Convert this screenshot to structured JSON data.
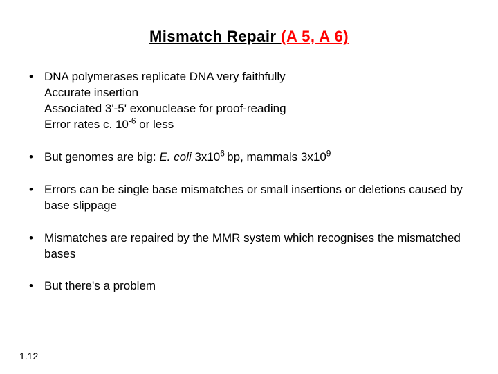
{
  "title_main": "Mismatch Repair ",
  "title_ref": "(A 5, A 6)",
  "bullets": [
    {
      "main": "DNA polymerases replicate DNA very faithfully",
      "sub1": "Accurate insertion",
      "sub2_a": "Associated 3",
      "sub2_b": "-5",
      "sub2_c": " exonuclease for proof-reading",
      "sub3_a": "Error rates c. 10",
      "sub3_sup": "-6",
      "sub3_b": " or less"
    },
    {
      "a": "But genomes are big: ",
      "ital": "E. coli ",
      "b": "3x10",
      "sup1": "6 ",
      "c": "bp, mammals 3x10",
      "sup2": "9"
    },
    {
      "text": "Errors can be single base mismatches or small insertions or deletions caused by base slippage"
    },
    {
      "text": "Mismatches are repaired by the MMR system which recognises the mismatched bases"
    },
    {
      "a": "But there",
      "b": "s a problem"
    }
  ],
  "pagenum": "1.12",
  "apostrophe": "'",
  "colors": {
    "title_ref": "#ff0000",
    "text": "#000000",
    "background": "#ffffff"
  },
  "font": {
    "title_size_pt": 17,
    "body_size_pt": 13
  }
}
